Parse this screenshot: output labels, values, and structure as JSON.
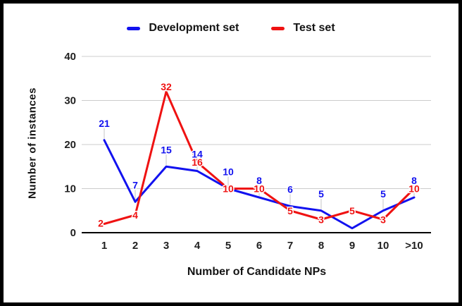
{
  "chart_data": {
    "type": "line",
    "categories": [
      "1",
      "2",
      "3",
      "4",
      "5",
      "6",
      "7",
      "8",
      "9",
      "10",
      ">10"
    ],
    "series": [
      {
        "name": "Development set",
        "color": "#1212ef",
        "values": [
          21,
          7,
          15,
          14,
          10,
          8,
          6,
          5,
          1,
          5,
          8
        ],
        "point_labels": [
          "21",
          "7",
          "15",
          "14",
          "10",
          "8",
          "6",
          "5",
          "",
          "5",
          "8"
        ]
      },
      {
        "name": "Test set",
        "color": "#ef1212",
        "values": [
          2,
          4,
          32,
          16,
          10,
          10,
          5,
          3,
          5,
          3,
          10
        ],
        "point_labels": [
          "2",
          "4",
          "32",
          "16",
          "10",
          "10",
          "5",
          "3",
          "5",
          "3",
          "10"
        ]
      }
    ],
    "xlabel": "Number of Candidate NPs",
    "ylabel": "Number of instances",
    "yticks": [
      0,
      10,
      20,
      30,
      40
    ],
    "ylim": [
      0,
      40
    ],
    "grid": true,
    "legend_position": "top",
    "gridline_color": "#cccccc",
    "baseline_color": "#000000"
  }
}
